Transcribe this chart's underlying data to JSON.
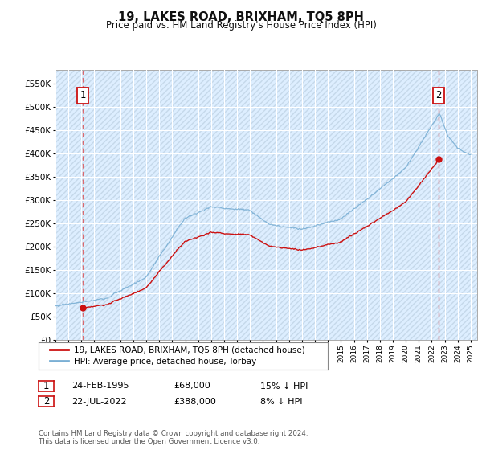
{
  "title": "19, LAKES ROAD, BRIXHAM, TQ5 8PH",
  "subtitle": "Price paid vs. HM Land Registry's House Price Index (HPI)",
  "background_color": "#ffffff",
  "plot_bg_color": "#ddeeff",
  "hatch_color": "#c5d8ea",
  "grid_color": "#ffffff",
  "ylim": [
    0,
    580000
  ],
  "yticks": [
    0,
    50000,
    100000,
    150000,
    200000,
    250000,
    300000,
    350000,
    400000,
    450000,
    500000,
    550000
  ],
  "ytick_labels": [
    "£0",
    "£50K",
    "£100K",
    "£150K",
    "£200K",
    "£250K",
    "£300K",
    "£350K",
    "£400K",
    "£450K",
    "£500K",
    "£550K"
  ],
  "hpi_color": "#7aafd4",
  "price_color": "#cc1111",
  "marker_color": "#cc1111",
  "sale1_date": 1995.12,
  "sale1_price": 68000,
  "sale2_date": 2022.55,
  "sale2_price": 388000,
  "legend_label1": "19, LAKES ROAD, BRIXHAM, TQ5 8PH (detached house)",
  "legend_label2": "HPI: Average price, detached house, Torbay",
  "footer": "Contains HM Land Registry data © Crown copyright and database right 2024.\nThis data is licensed under the Open Government Licence v3.0.",
  "xmin": 1993.0,
  "xmax": 2025.5,
  "note1_date": "24-FEB-1995",
  "note1_price": "£68,000",
  "note1_hpi": "15% ↓ HPI",
  "note2_date": "22-JUL-2022",
  "note2_price": "£388,000",
  "note2_hpi": "8% ↓ HPI"
}
